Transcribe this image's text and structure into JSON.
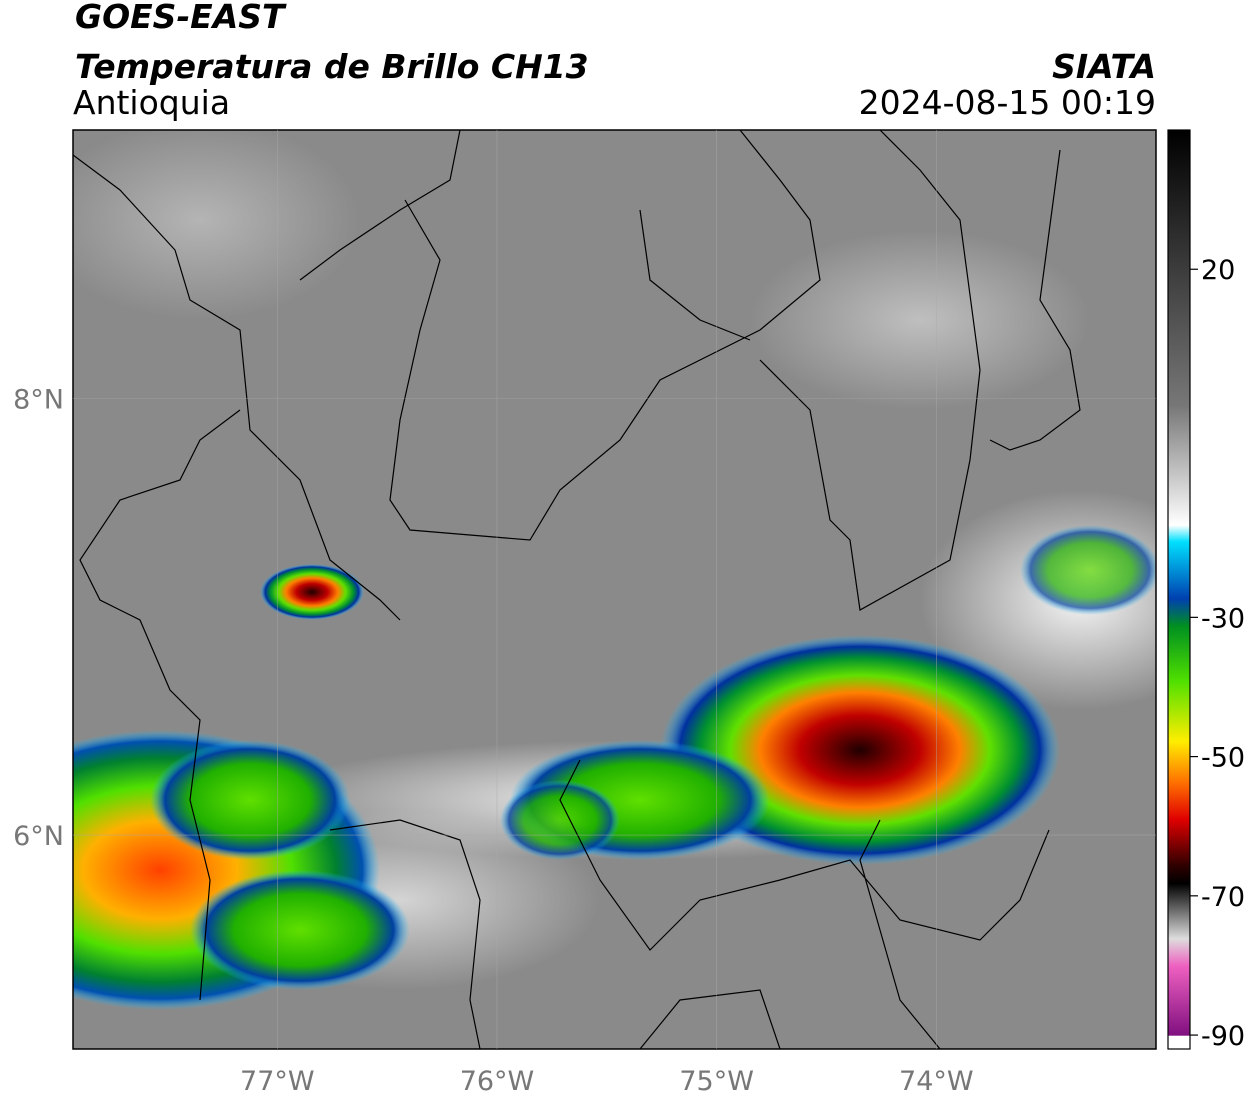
{
  "header": {
    "title": "GOES-EAST",
    "subtitle": "Temperatura de Brillo CH13",
    "region": "Antioquia",
    "source": "SIATA",
    "datetime": "2024-08-15 00:19"
  },
  "map": {
    "xlim": [
      -77.93,
      -73.0
    ],
    "ylim": [
      5.02,
      9.23
    ],
    "xticks": [
      {
        "value": -77,
        "label": "77°W"
      },
      {
        "value": -76,
        "label": "76°W"
      },
      {
        "value": -75,
        "label": "75°W"
      },
      {
        "value": -74,
        "label": "74°W"
      }
    ],
    "yticks": [
      {
        "value": 8,
        "label": "8°N"
      },
      {
        "value": 6,
        "label": "6°N"
      }
    ]
  },
  "colorbar": {
    "lim": [
      -92,
      40
    ],
    "ticks": [
      20,
      -30,
      -50,
      -70,
      -90
    ]
  }
}
